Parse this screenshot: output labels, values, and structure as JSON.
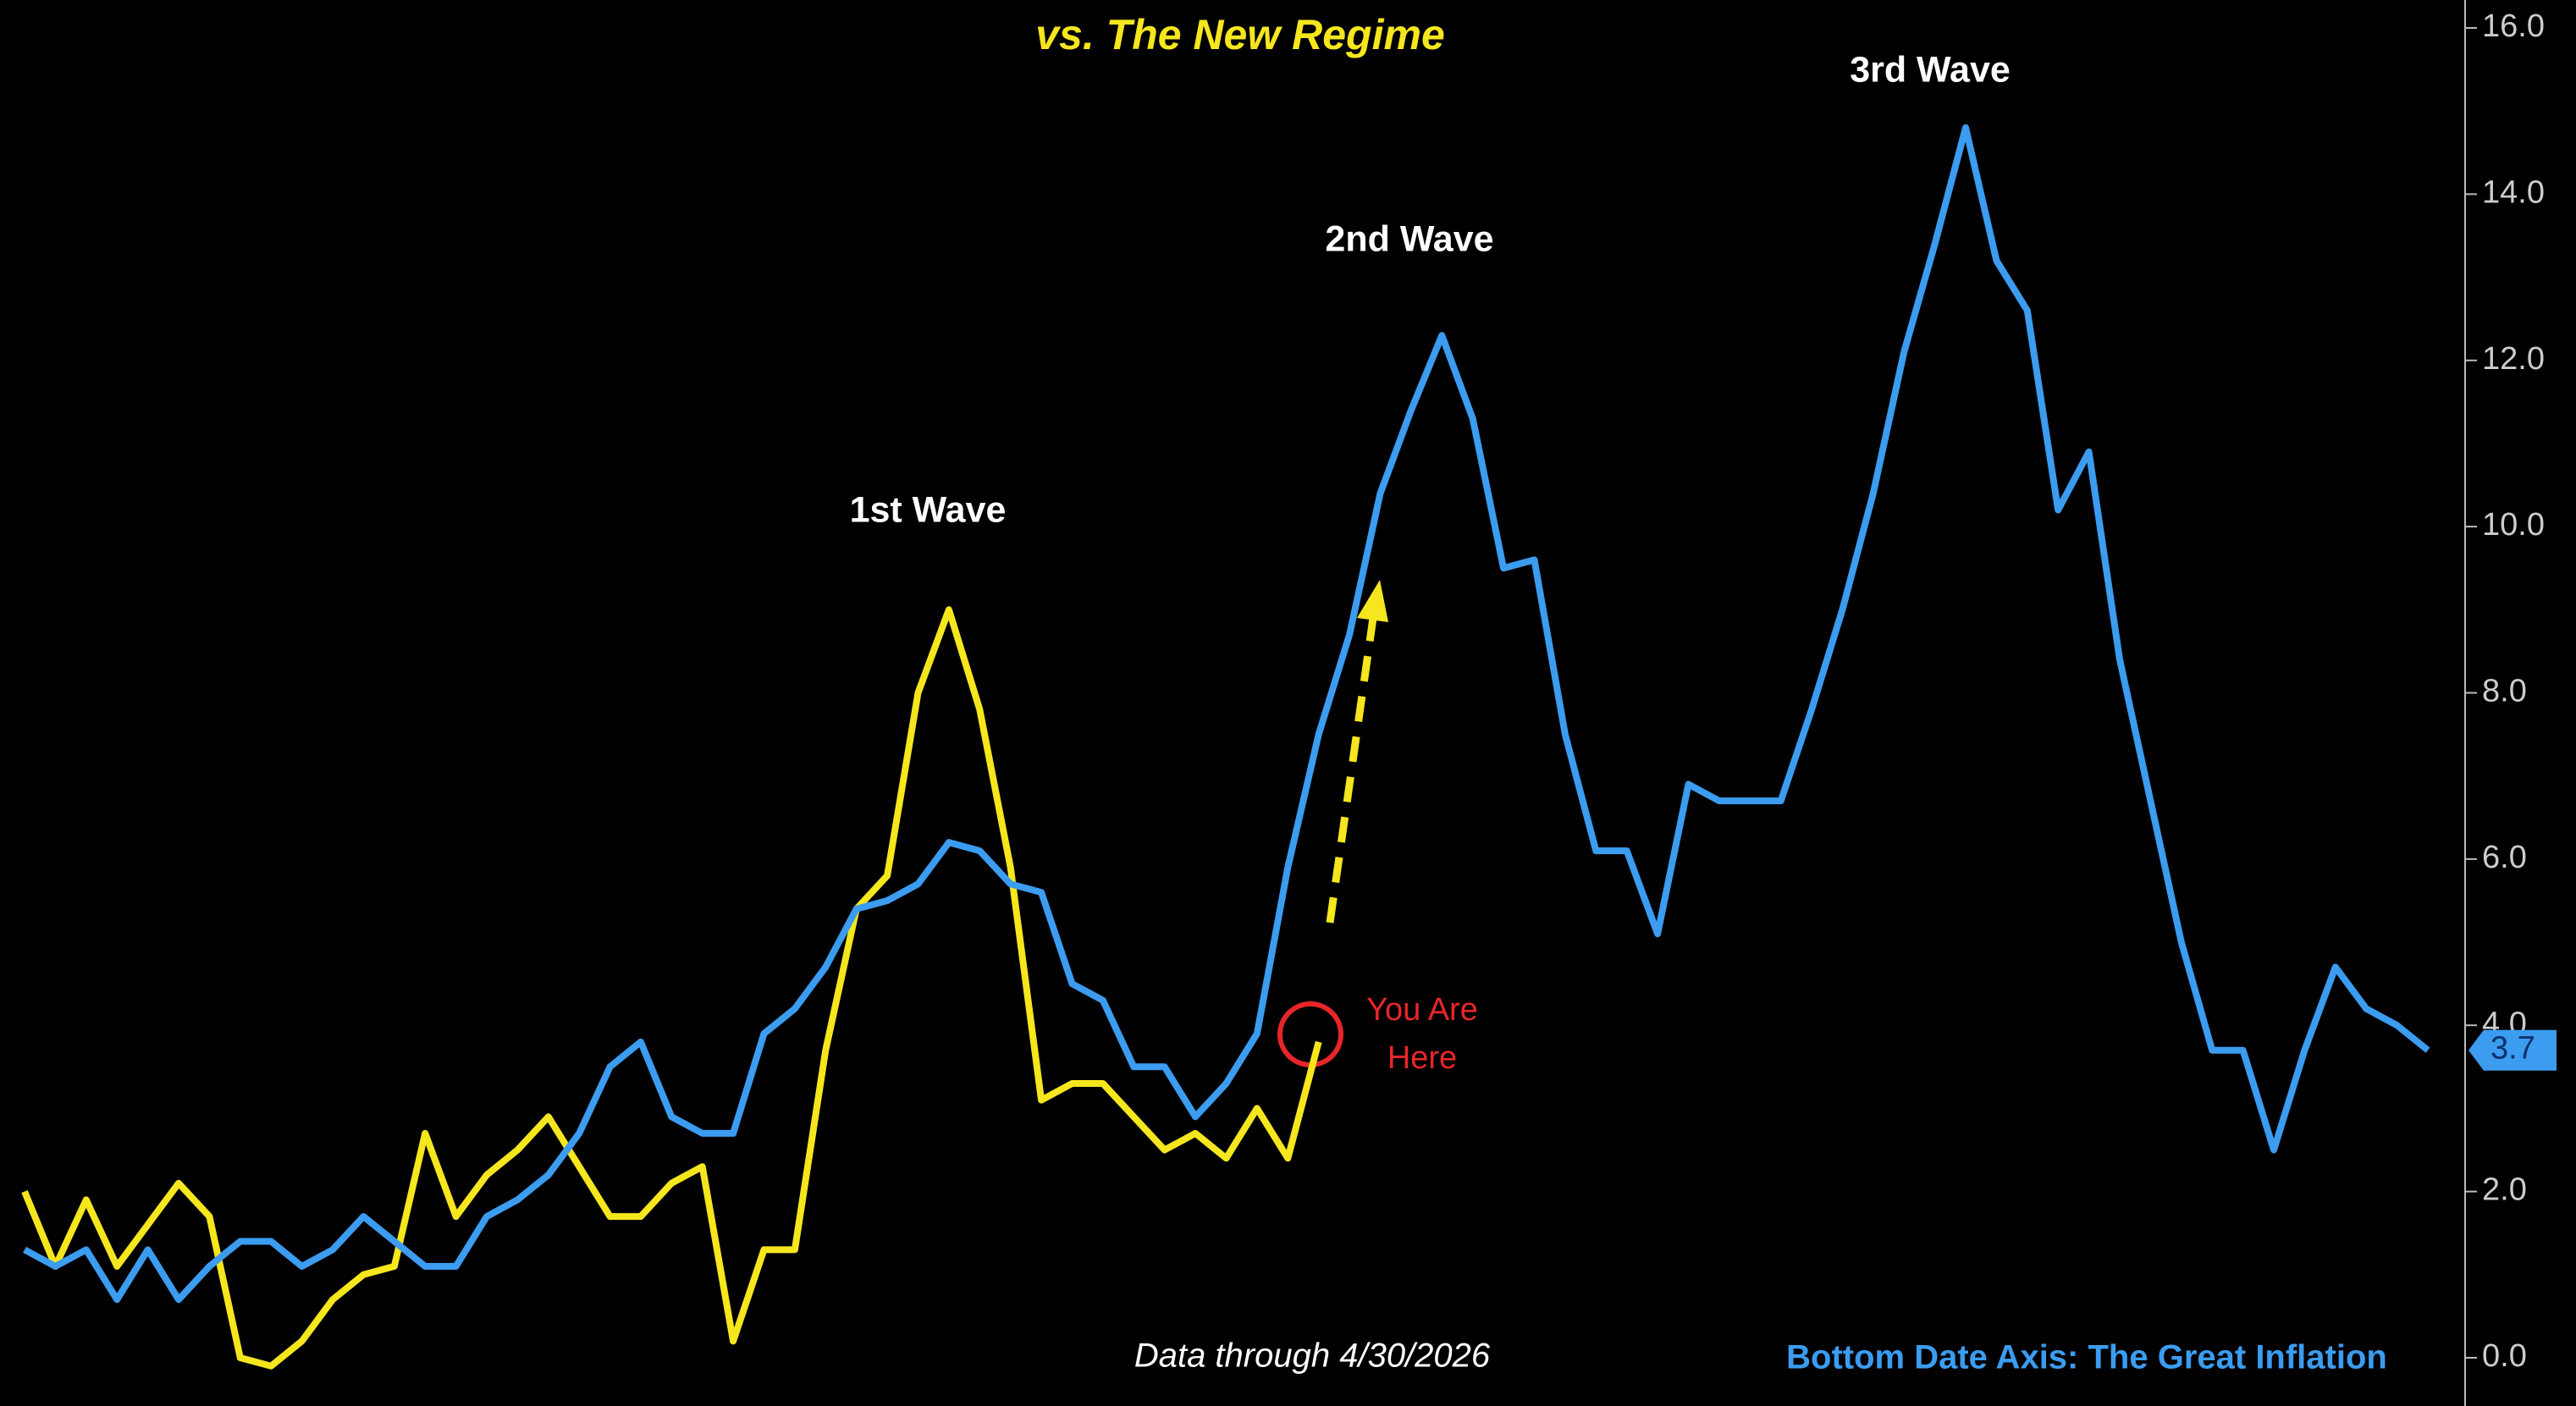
{
  "chart_data": {
    "type": "line",
    "title": "vs. The New Regime",
    "annotations": [
      "1st Wave",
      "2nd Wave",
      "3rd Wave",
      "You Are Here",
      "Data through 4/30/2026",
      "Bottom Date Axis: The Great Inflation"
    ],
    "last_value_label": "3.7",
    "series": [
      {
        "color": "#3b9cf0",
        "values": [
          1.3,
          1.1,
          1.3,
          0.7,
          1.3,
          0.7,
          1.1,
          1.4,
          1.4,
          1.1,
          1.3,
          1.7,
          1.4,
          1.1,
          1.1,
          1.7,
          1.9,
          2.2,
          2.7,
          3.5,
          3.8,
          2.9,
          2.7,
          2.7,
          3.9,
          4.2,
          4.7,
          5.4,
          5.5,
          5.7,
          6.2,
          6.1,
          5.7,
          5.6,
          4.5,
          4.3,
          3.5,
          3.5,
          2.9,
          3.3,
          3.9,
          5.9,
          7.5,
          8.7,
          10.4,
          11.4,
          12.3,
          11.3,
          9.5,
          9.6,
          7.5,
          6.1,
          6.1,
          5.1,
          6.9,
          6.7,
          6.7,
          6.7,
          7.8,
          9.0,
          10.4,
          12.1,
          13.4,
          14.8,
          13.2,
          12.6,
          10.2,
          10.9,
          8.4,
          6.7,
          5.0,
          3.7,
          3.7,
          2.5,
          3.7,
          4.7,
          4.2,
          4.0,
          3.7
        ]
      },
      {
        "color": "#f5e61e",
        "values": [
          2.0,
          1.1,
          1.9,
          1.1,
          1.6,
          2.1,
          1.7,
          0.0,
          -0.1,
          0.2,
          0.7,
          1.0,
          1.1,
          2.7,
          1.7,
          2.2,
          2.5,
          2.9,
          2.3,
          1.7,
          1.7,
          2.1,
          2.3,
          0.2,
          1.3,
          1.3,
          3.7,
          5.4,
          5.8,
          8.0,
          9.0,
          7.8,
          5.9,
          3.1,
          3.3,
          3.3,
          2.9,
          2.5,
          2.7,
          2.4,
          3.0,
          2.4,
          3.8
        ]
      }
    ],
    "ylim": [
      0,
      16
    ],
    "yticks": [
      {
        "value": 0,
        "label": "0.0"
      },
      {
        "value": 2,
        "label": "2.0"
      },
      {
        "value": 4,
        "label": "4.0"
      },
      {
        "value": 6,
        "label": "6.0"
      },
      {
        "value": 8,
        "label": "8.0"
      },
      {
        "value": 10,
        "label": "10.0"
      },
      {
        "value": 12,
        "label": "12.0"
      },
      {
        "value": 14,
        "label": "14.0"
      },
      {
        "value": 16,
        "label": "16.0"
      }
    ]
  }
}
